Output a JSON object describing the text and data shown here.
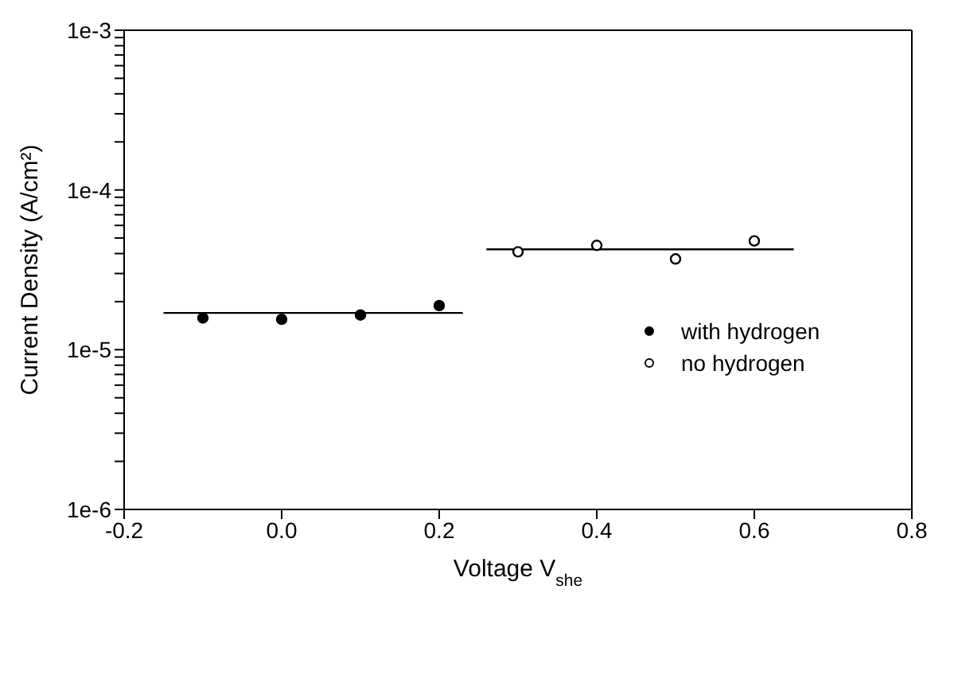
{
  "chart_data": {
    "type": "scatter",
    "xlabel": "Voltage V$_{she}$",
    "ylabel": "Current Density (A/cm²)",
    "log": "y",
    "xlim": [
      -0.2,
      0.8
    ],
    "xticks": [
      -0.2,
      {
        "value": 0,
        "label": "0.0"
      },
      0.2,
      0.4,
      0.6,
      0.8
    ],
    "ylim": [
      1e-06,
      0.001
    ],
    "yticks": [
      {
        "value": 1e-06,
        "label": "1e-6"
      },
      {
        "value": 2e-06,
        "label": null
      },
      {
        "value": 3e-06,
        "label": null
      },
      {
        "value": 4e-06,
        "label": null
      },
      {
        "value": 5e-06,
        "label": null
      },
      {
        "value": 6e-06,
        "label": null
      },
      {
        "value": 7e-06,
        "label": null
      },
      {
        "value": 8e-06,
        "label": null
      },
      {
        "value": 9e-06,
        "label": null
      },
      {
        "value": 1e-05,
        "label": "1e-5"
      },
      {
        "value": 2e-05,
        "label": null
      },
      {
        "value": 3e-05,
        "label": null
      },
      {
        "value": 4e-05,
        "label": null
      },
      {
        "value": 5e-05,
        "label": null
      },
      {
        "value": 6e-05,
        "label": null
      },
      {
        "value": 7e-05,
        "label": null
      },
      {
        "value": 8e-05,
        "label": null
      },
      {
        "value": 9e-05,
        "label": null
      },
      {
        "value": 0.0001,
        "label": "1e-4"
      },
      {
        "value": 0.0002,
        "label": null
      },
      {
        "value": 0.0003,
        "label": null
      },
      {
        "value": 0.0004,
        "label": null
      },
      {
        "value": 0.0005,
        "label": null
      },
      {
        "value": 0.0006,
        "label": null
      },
      {
        "value": 0.0007,
        "label": null
      },
      {
        "value": 0.0008,
        "label": null
      },
      {
        "value": 0.0009,
        "label": null
      },
      {
        "value": 0.001,
        "label": "1e-3"
      }
    ],
    "legend": "right",
    "series": [
      {
        "name": "with hydrogen",
        "color": "#000000",
        "marker": "circle",
        "x": [
          -0.1,
          0.0,
          0.1,
          0.2
        ],
        "values": [
          1.58e-05,
          1.55e-05,
          1.65e-05,
          1.89e-05
        ]
      },
      {
        "name": "no hydrogen",
        "color": "#000000",
        "marker": "circle",
        "x": [
          0.3,
          0.4,
          0.5,
          0.6
        ],
        "values": [
          4.1e-05,
          4.5e-05,
          3.7e-05,
          4.8e-05
        ]
      },
      {
        "type": "line",
        "color": "#000000",
        "marker": "none",
        "x": [
          -0.15,
          0.23
        ],
        "values": [
          1.7e-05,
          1.7e-05
        ]
      },
      {
        "type": "line",
        "color": "#000000",
        "marker": "none",
        "x": [
          0.26,
          0.65
        ],
        "values": [
          4.25e-05,
          4.25e-05
        ]
      }
    ]
  }
}
